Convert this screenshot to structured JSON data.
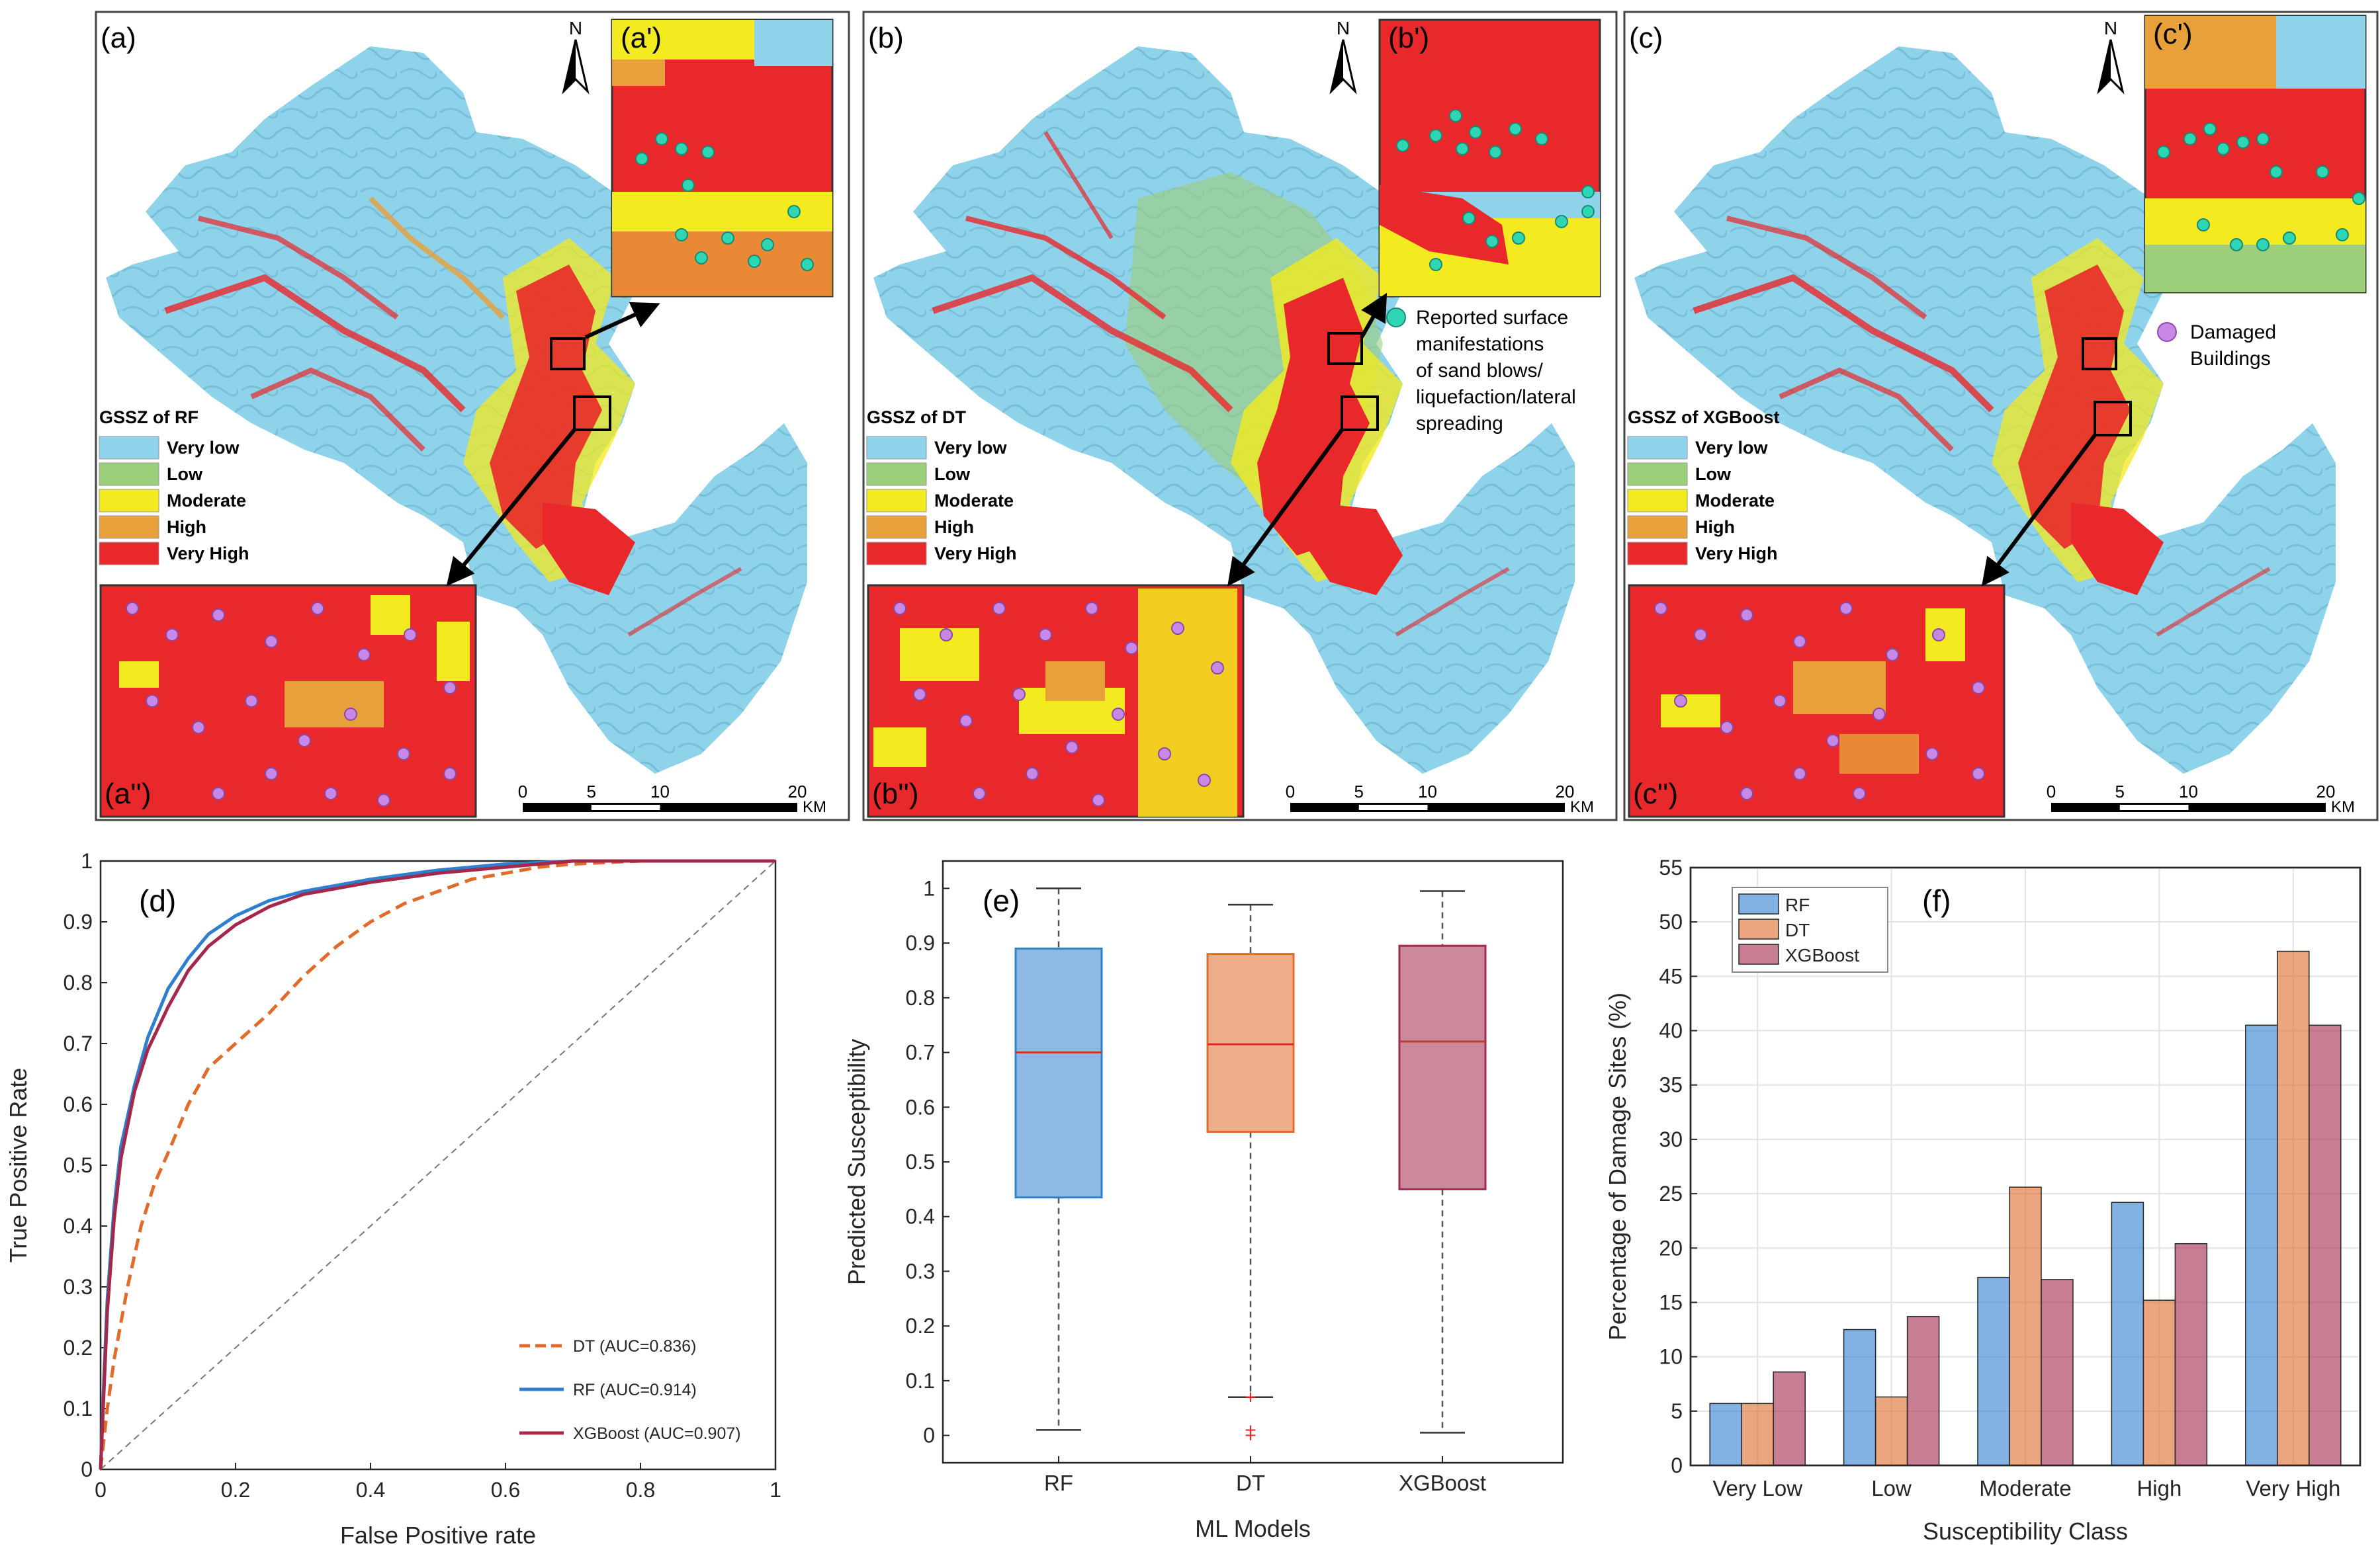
{
  "maps": {
    "legend_classes": [
      "Very low",
      "Low",
      "Moderate",
      "High",
      "Very High"
    ],
    "class_colors": [
      "#8fd3ea",
      "#9ccf7a",
      "#f3ea1f",
      "#e8a13a",
      "#e8282a"
    ],
    "point_colors": {
      "surface": "#2fd6b3",
      "building": "#c987e6"
    },
    "north_label": "N",
    "scalebar_ticks": [
      "0",
      "5",
      "10",
      "20"
    ],
    "scalebar_unit": "KM",
    "annotations": {
      "surface_manifestations": [
        "Reported surface",
        "manifestations",
        "of sand blows/",
        "liquefaction/lateral",
        "spreading"
      ],
      "damaged_buildings": [
        "Damaged",
        "Buildings"
      ]
    },
    "panels": [
      {
        "label": "(a)",
        "legend_title": "GSSZ of RF",
        "inset_top_label": "(a')",
        "inset_bottom_label": "(a'')"
      },
      {
        "label": "(b)",
        "legend_title": "GSSZ of DT",
        "inset_top_label": "(b')",
        "inset_bottom_label": "(b'')"
      },
      {
        "label": "(c)",
        "legend_title": "GSSZ of XGBoost",
        "inset_top_label": "(c')",
        "inset_bottom_label": "(c'')"
      }
    ]
  },
  "series_colors": {
    "RF": "#2f7fd0",
    "DT": "#e06b2a",
    "XGBoost": "#a3284a"
  },
  "chart_data": [
    {
      "panel": "(d)",
      "type": "line",
      "xlabel": "False Positive rate",
      "ylabel": "True Positive Rate",
      "xlim": [
        0,
        1
      ],
      "ylim": [
        0,
        1
      ],
      "xticks": [
        0,
        0.2,
        0.4,
        0.6,
        0.8,
        1
      ],
      "yticks": [
        0,
        0.1,
        0.2,
        0.3,
        0.4,
        0.5,
        0.6,
        0.7,
        0.8,
        0.9,
        1
      ],
      "legend": [
        "DT (AUC=0.836)",
        "RF (AUC=0.914)",
        "XGBoost (AUC=0.907)"
      ],
      "series": [
        {
          "name": "DT",
          "style": "dashed",
          "x": [
            0,
            0.01,
            0.02,
            0.04,
            0.06,
            0.08,
            0.1,
            0.13,
            0.16,
            0.2,
            0.25,
            0.3,
            0.35,
            0.4,
            0.45,
            0.5,
            0.55,
            0.6,
            0.65,
            0.7,
            0.8,
            0.9,
            1
          ],
          "y": [
            0,
            0.1,
            0.18,
            0.3,
            0.4,
            0.47,
            0.52,
            0.6,
            0.66,
            0.7,
            0.75,
            0.81,
            0.86,
            0.9,
            0.93,
            0.95,
            0.97,
            0.98,
            0.99,
            0.995,
            1,
            1,
            1
          ]
        },
        {
          "name": "RF",
          "style": "solid",
          "x": [
            0,
            0.005,
            0.01,
            0.02,
            0.03,
            0.05,
            0.07,
            0.1,
            0.13,
            0.16,
            0.2,
            0.25,
            0.3,
            0.35,
            0.4,
            0.5,
            0.6,
            0.7,
            0.8,
            1
          ],
          "y": [
            0,
            0.15,
            0.28,
            0.43,
            0.53,
            0.63,
            0.71,
            0.79,
            0.84,
            0.88,
            0.91,
            0.935,
            0.95,
            0.96,
            0.97,
            0.985,
            0.995,
            1,
            1,
            1
          ]
        },
        {
          "name": "XGBoost",
          "style": "solid",
          "x": [
            0,
            0.005,
            0.01,
            0.02,
            0.03,
            0.05,
            0.07,
            0.1,
            0.13,
            0.16,
            0.2,
            0.25,
            0.3,
            0.35,
            0.4,
            0.5,
            0.6,
            0.7,
            0.8,
            1
          ],
          "y": [
            0,
            0.13,
            0.26,
            0.41,
            0.51,
            0.62,
            0.69,
            0.76,
            0.82,
            0.86,
            0.895,
            0.925,
            0.945,
            0.955,
            0.965,
            0.98,
            0.99,
            1,
            1,
            1
          ]
        }
      ]
    },
    {
      "panel": "(e)",
      "type": "box",
      "xlabel": "ML Models",
      "ylabel": "Predicted Susceptibility",
      "ylim": [
        -0.05,
        1.05
      ],
      "yticks": [
        0,
        0.1,
        0.2,
        0.3,
        0.4,
        0.5,
        0.6,
        0.7,
        0.8,
        0.9,
        1
      ],
      "categories": [
        "RF",
        "DT",
        "XGBoost"
      ],
      "boxes": [
        {
          "name": "RF",
          "whisker_low": 0.01,
          "q1": 0.435,
          "median": 0.7,
          "q3": 0.89,
          "whisker_high": 1.0,
          "outliers": []
        },
        {
          "name": "DT",
          "whisker_low": 0.07,
          "q1": 0.555,
          "median": 0.715,
          "q3": 0.88,
          "whisker_high": 0.97,
          "outliers": [
            0.07,
            0.01,
            0.0
          ]
        },
        {
          "name": "XGBoost",
          "whisker_low": 0.005,
          "q1": 0.45,
          "median": 0.72,
          "q3": 0.895,
          "whisker_high": 0.995,
          "outliers": []
        }
      ]
    },
    {
      "panel": "(f)",
      "type": "bar",
      "xlabel": "Susceptibility Class",
      "ylabel": "Percentage of Damage Sites (%)",
      "ylim": [
        0,
        55
      ],
      "yticks": [
        0,
        5,
        10,
        15,
        20,
        25,
        30,
        35,
        40,
        45,
        50,
        55
      ],
      "categories": [
        "Very Low",
        "Low",
        "Moderate",
        "High",
        "Very High"
      ],
      "legend": [
        "RF",
        "DT",
        "XGBoost"
      ],
      "series": [
        {
          "name": "RF",
          "values": [
            5.7,
            12.5,
            17.3,
            24.2,
            40.5
          ]
        },
        {
          "name": "DT",
          "values": [
            5.7,
            6.3,
            25.6,
            15.2,
            47.3
          ]
        },
        {
          "name": "XGBoost",
          "values": [
            8.6,
            13.7,
            17.1,
            20.4,
            40.5
          ]
        }
      ]
    }
  ]
}
